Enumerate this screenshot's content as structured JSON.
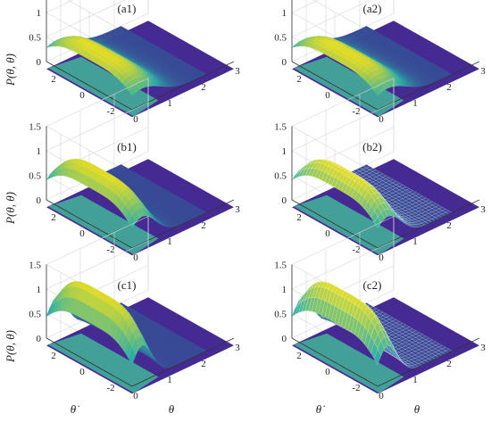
{
  "figure": {
    "panels": [
      {
        "id": "a1",
        "label": "(a1)",
        "peak": 0.62,
        "spread": 0.75,
        "yshift": 0.0,
        "style": "smooth"
      },
      {
        "id": "a2",
        "label": "(a2)",
        "peak": 0.62,
        "spread": 0.75,
        "yshift": 0.0,
        "style": "smooth"
      },
      {
        "id": "b1",
        "label": "(b1)",
        "peak": 1.0,
        "spread": 0.55,
        "yshift": -0.1,
        "style": "smooth"
      },
      {
        "id": "b2",
        "label": "(b2)",
        "peak": 1.0,
        "spread": 0.55,
        "yshift": -0.1,
        "style": "mesh"
      },
      {
        "id": "c1",
        "label": "(c1)",
        "peak": 1.35,
        "spread": 0.42,
        "yshift": -0.25,
        "style": "smooth"
      },
      {
        "id": "c2",
        "label": "(c2)",
        "peak": 1.35,
        "spread": 0.42,
        "yshift": -0.25,
        "style": "mesh"
      }
    ],
    "z_ticks": [
      "1.5",
      "1",
      "0.5",
      "0"
    ],
    "thetadot_ticks": [
      "2",
      "0",
      "-2"
    ],
    "theta_ticks": [
      "0",
      "1",
      "2",
      "3"
    ],
    "zlabel": "P(θ, θ̇)",
    "xlabel_thetadot": "θ̇",
    "xlabel_theta": "θ"
  },
  "chart_data": [
    {
      "type": "surface",
      "title": "(a1)",
      "zlim": [
        0,
        1.5
      ],
      "xlim_theta": [
        0,
        3
      ],
      "xlim_thetadot": [
        -3,
        3
      ],
      "peak_z": 0.62
    },
    {
      "type": "surface",
      "title": "(a2)",
      "zlim": [
        0,
        1.5
      ],
      "xlim_theta": [
        0,
        3
      ],
      "xlim_thetadot": [
        -3,
        3
      ],
      "peak_z": 0.62
    },
    {
      "type": "surface",
      "title": "(b1)",
      "zlim": [
        0,
        1.5
      ],
      "xlim_theta": [
        0,
        3
      ],
      "xlim_thetadot": [
        -3,
        3
      ],
      "peak_z": 1.0
    },
    {
      "type": "surface",
      "title": "(b2)",
      "zlim": [
        0,
        1.5
      ],
      "xlim_theta": [
        0,
        3
      ],
      "xlim_thetadot": [
        -3,
        3
      ],
      "peak_z": 1.0
    },
    {
      "type": "surface",
      "title": "(c1)",
      "zlim": [
        0,
        1.5
      ],
      "xlim_theta": [
        0,
        3
      ],
      "xlim_thetadot": [
        -3,
        3
      ],
      "peak_z": 1.35
    },
    {
      "type": "surface",
      "title": "(c2)",
      "zlim": [
        0,
        1.5
      ],
      "xlim_theta": [
        0,
        3
      ],
      "xlim_thetadot": [
        -3,
        3
      ],
      "peak_z": 1.35
    }
  ],
  "colors": {
    "low": "#3c1f8e",
    "mid": "#2fb0a8",
    "high": "#f7e219"
  }
}
